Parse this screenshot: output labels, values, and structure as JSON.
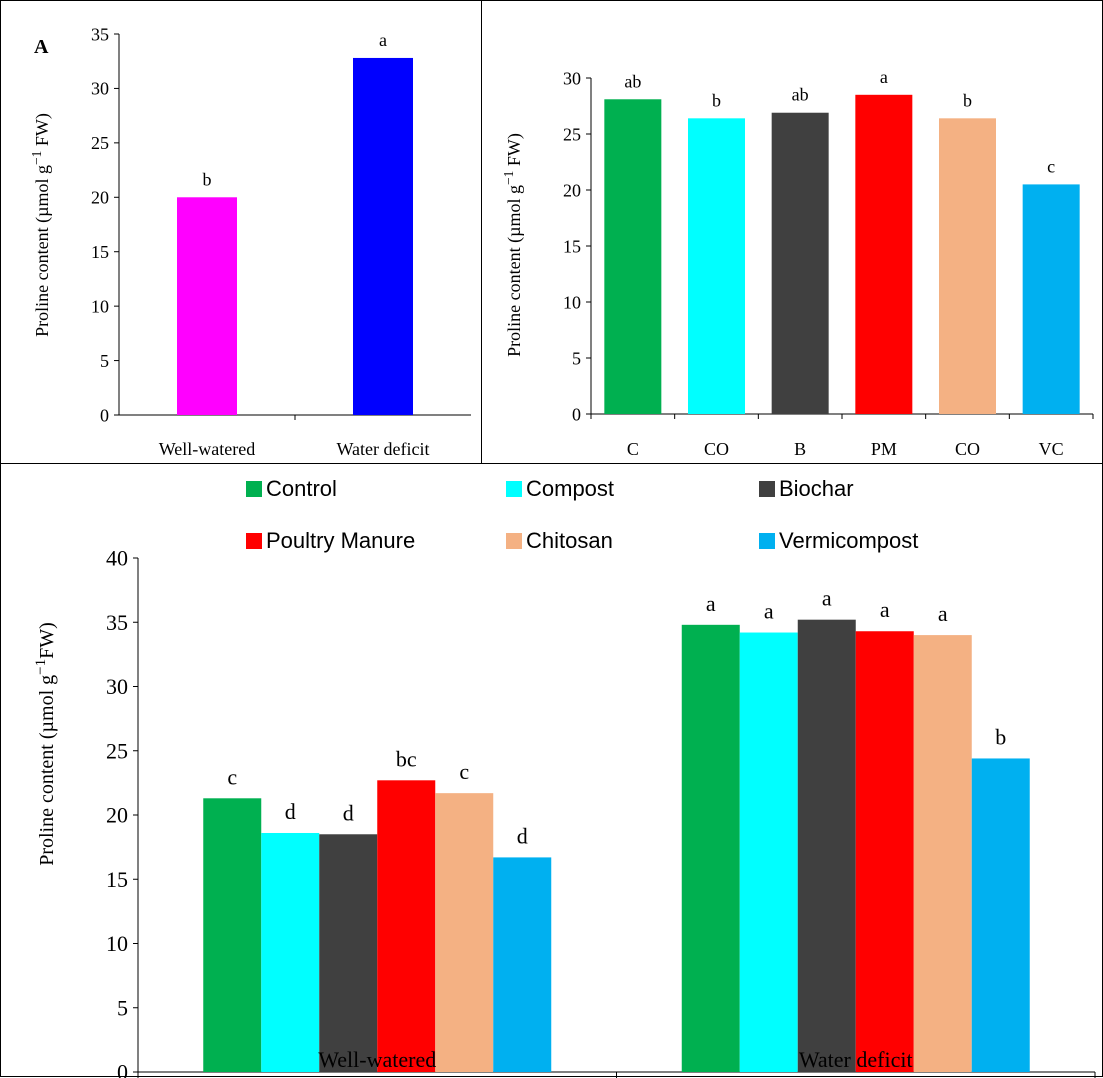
{
  "chart_data": [
    {
      "id": "A",
      "type": "bar",
      "panel_label": "A",
      "ylabel": "Proline content (µmol g",
      "ylabel_sup": "−1",
      "ylabel_tail": " FW)",
      "ylim": [
        0,
        35
      ],
      "yticks": [
        0,
        5,
        10,
        15,
        20,
        25,
        30,
        35
      ],
      "categories": [
        "Well-watered",
        "Water deficit"
      ],
      "values": [
        20.0,
        32.8
      ],
      "colors": [
        "#ff00ff",
        "#0000ff"
      ],
      "letters": [
        "b",
        "a"
      ]
    },
    {
      "id": "B",
      "type": "bar",
      "ylabel": "Proline content (µmol g",
      "ylabel_sup": "−1",
      "ylabel_tail": " FW)",
      "ylim": [
        0,
        30
      ],
      "yticks": [
        0,
        5,
        10,
        15,
        20,
        25,
        30
      ],
      "categories": [
        "C",
        "CO",
        "B",
        "PM",
        "CO",
        "VC"
      ],
      "values": [
        28.1,
        26.4,
        26.9,
        28.5,
        26.4,
        20.5
      ],
      "colors": [
        "#00b050",
        "#00ffff",
        "#404040",
        "#ff0000",
        "#f4b183",
        "#00b0f0"
      ],
      "letters": [
        "ab",
        "b",
        "ab",
        "a",
        "b",
        "c"
      ]
    },
    {
      "id": "C",
      "type": "bar",
      "ylabel": "Proline content (µmol g",
      "ylabel_sup": "−1",
      "ylabel_tail": "FW)",
      "ylim": [
        0,
        40
      ],
      "yticks": [
        0,
        5,
        10,
        15,
        20,
        25,
        30,
        35,
        40
      ],
      "categories": [
        "Well-watered",
        "Water deficit"
      ],
      "legend_position": "top",
      "series": [
        {
          "name": "Control",
          "color": "#00b050",
          "values": [
            21.3,
            34.8
          ],
          "letters": [
            "c",
            "a"
          ]
        },
        {
          "name": "Compost",
          "color": "#00ffff",
          "values": [
            18.6,
            34.2
          ],
          "letters": [
            "d",
            "a"
          ]
        },
        {
          "name": "Biochar",
          "color": "#404040",
          "values": [
            18.5,
            35.2
          ],
          "letters": [
            "d",
            "a"
          ]
        },
        {
          "name": "Poultry Manure",
          "color": "#ff0000",
          "values": [
            22.7,
            34.3
          ],
          "letters": [
            "bc",
            "a"
          ]
        },
        {
          "name": "Chitosan",
          "color": "#f4b183",
          "values": [
            21.7,
            34.0
          ],
          "letters": [
            "c",
            "a"
          ]
        },
        {
          "name": "Vermicompost",
          "color": "#00b0f0",
          "values": [
            16.7,
            24.4
          ],
          "letters": [
            "d",
            "b"
          ]
        }
      ]
    }
  ]
}
